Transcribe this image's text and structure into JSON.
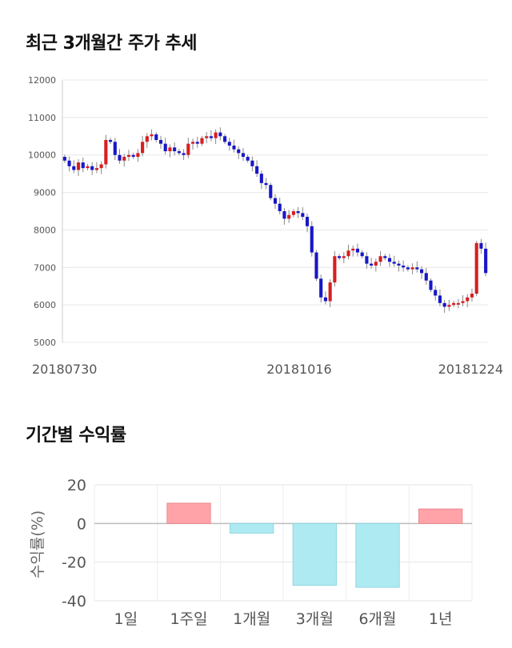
{
  "section1": {
    "title": "최근 3개월간 주가 추세"
  },
  "section2": {
    "title": "기간별 수익률"
  },
  "chart_data": [
    {
      "type": "candlestick",
      "title": "최근 3개월간 주가 추세",
      "ylim": [
        5000,
        12000
      ],
      "y_ticks": [
        "12000",
        "11000",
        "10000",
        "9000",
        "8000",
        "7000",
        "6000",
        "5000"
      ],
      "x_tick_labels": [
        "20180730",
        "20181016",
        "20181224"
      ],
      "grid": true,
      "up_color": "#d81e1e",
      "down_color": "#1717c8",
      "closes": [
        9850,
        9700,
        9600,
        9800,
        9650,
        9700,
        9600,
        9650,
        9750,
        10400,
        10350,
        10000,
        9850,
        9950,
        10000,
        9950,
        10050,
        10350,
        10500,
        10550,
        10400,
        10300,
        10100,
        10200,
        10100,
        10050,
        10000,
        10300,
        10350,
        10300,
        10450,
        10500,
        10450,
        10600,
        10500,
        10350,
        10250,
        10150,
        10050,
        9950,
        9850,
        9700,
        9500,
        9250,
        9200,
        8850,
        8700,
        8500,
        8300,
        8400,
        8500,
        8450,
        8350,
        8100,
        7400,
        6700,
        6200,
        6100,
        6600,
        7300,
        7250,
        7300,
        7450,
        7500,
        7400,
        7300,
        7100,
        7050,
        7150,
        7300,
        7250,
        7150,
        7100,
        7050,
        7000,
        6950,
        7000,
        6950,
        6850,
        6650,
        6400,
        6250,
        6050,
        5950,
        6000,
        6050,
        6050,
        6100,
        6200,
        6300,
        7650,
        7500,
        6850
      ]
    },
    {
      "type": "bar",
      "title": "기간별 수익률",
      "ylabel": "수익률(%)",
      "ylim": [
        -40,
        20
      ],
      "y_ticks": [
        "20",
        "0",
        "-20",
        "-40"
      ],
      "categories": [
        "1일",
        "1주일",
        "1개월",
        "3개월",
        "6개월",
        "1년"
      ],
      "values": [
        0,
        10.5,
        -5,
        -32,
        -33,
        7.5
      ],
      "positive_color": "#ffa3a8",
      "negative_color": "#aeeaf2"
    }
  ]
}
